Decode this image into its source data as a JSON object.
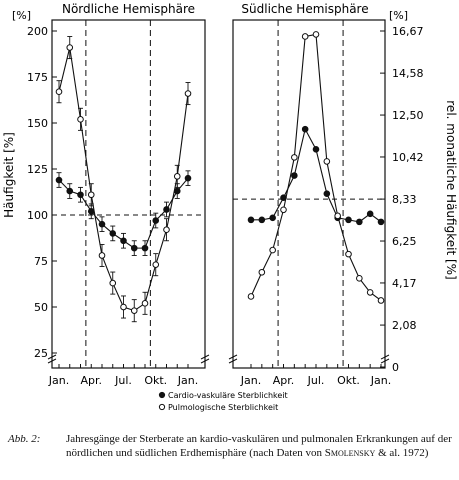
{
  "chart_data": [
    {
      "type": "line",
      "title": "Nördliche Hemisphäre",
      "ylabel": "Häufigkeit [%]",
      "yunit": "[%]",
      "ylim": [
        25,
        200
      ],
      "yticks": [
        "25",
        "50",
        "75",
        "100",
        "125",
        "150",
        "175",
        "200"
      ],
      "ytick_values": [
        25,
        50,
        75,
        100,
        125,
        150,
        175,
        200
      ],
      "xticks": [
        "Jan.",
        "Apr.",
        "Jul.",
        "Okt.",
        "Jan."
      ],
      "xtick_months": [
        0,
        3,
        6,
        9,
        12
      ],
      "reference_line": 100,
      "season_boundaries": [
        2.5,
        8.5
      ],
      "x": [
        0,
        1,
        2,
        3,
        4,
        5,
        6,
        7,
        8,
        9,
        10,
        11,
        12
      ],
      "series": [
        {
          "name": "Cardio-vaskuläre Sterblichkeit",
          "marker": "filled",
          "values": [
            119,
            113,
            111,
            102,
            95,
            90,
            86,
            82,
            82,
            97,
            103,
            113,
            120
          ]
        },
        {
          "name": "Pulmologische Sterblichkeit",
          "marker": "open",
          "values": [
            167,
            191,
            152,
            111,
            78,
            63,
            50,
            48,
            52,
            73,
            92,
            121,
            166
          ]
        }
      ]
    },
    {
      "type": "line",
      "title": "Südliche Hemisphäre",
      "ylabel": "rel. monatliche Häufigkeit [%]",
      "yunit": "[%]",
      "ytick_labels": [
        "0",
        "2,08",
        "4,17",
        "6,25",
        "8,33",
        "10,42",
        "12,50",
        "14,58",
        "16,67"
      ],
      "ytick_values": [
        0,
        2.08,
        4.17,
        6.25,
        8.33,
        10.42,
        12.5,
        14.58,
        16.67
      ],
      "ylim": [
        0,
        17.5
      ],
      "xticks": [
        "Jan.",
        "Apr.",
        "Jul.",
        "Okt.",
        "Jan."
      ],
      "xtick_months": [
        0,
        3,
        6,
        9,
        12
      ],
      "reference_line": 8.33,
      "season_boundaries": [
        2.5,
        8.5
      ],
      "x": [
        0,
        1,
        2,
        3,
        4,
        5,
        6,
        7,
        8,
        9,
        10,
        11,
        12
      ],
      "series": [
        {
          "name": "Cardio-vaskuläre Sterblichkeit",
          "marker": "filled",
          "values": [
            7.3,
            7.3,
            7.4,
            8.4,
            9.5,
            11.8,
            10.8,
            8.6,
            7.4,
            7.3,
            7.2,
            7.6,
            7.2
          ]
        },
        {
          "name": "Pulmologische Sterblichkeit",
          "marker": "open",
          "values": [
            3.5,
            4.7,
            5.8,
            7.8,
            10.4,
            16.4,
            16.5,
            10.2,
            7.5,
            5.6,
            4.4,
            3.7,
            3.3
          ]
        }
      ]
    }
  ],
  "legend": [
    {
      "marker": "filled",
      "label": "Cardio-vaskuläre Sterblichkeit"
    },
    {
      "marker": "open",
      "label": "Pulmologische Sterblichkeit"
    }
  ],
  "caption": {
    "label": "Abb. 2:",
    "text_before": "Jahresgänge der Sterberate an kardio-vaskulären und pulmonalen Erkrankungen auf der nördlichen und südlichen Erdhemisphäre (nach Daten von ",
    "author": "Smolensky",
    "text_after": " & al. 1972)"
  }
}
